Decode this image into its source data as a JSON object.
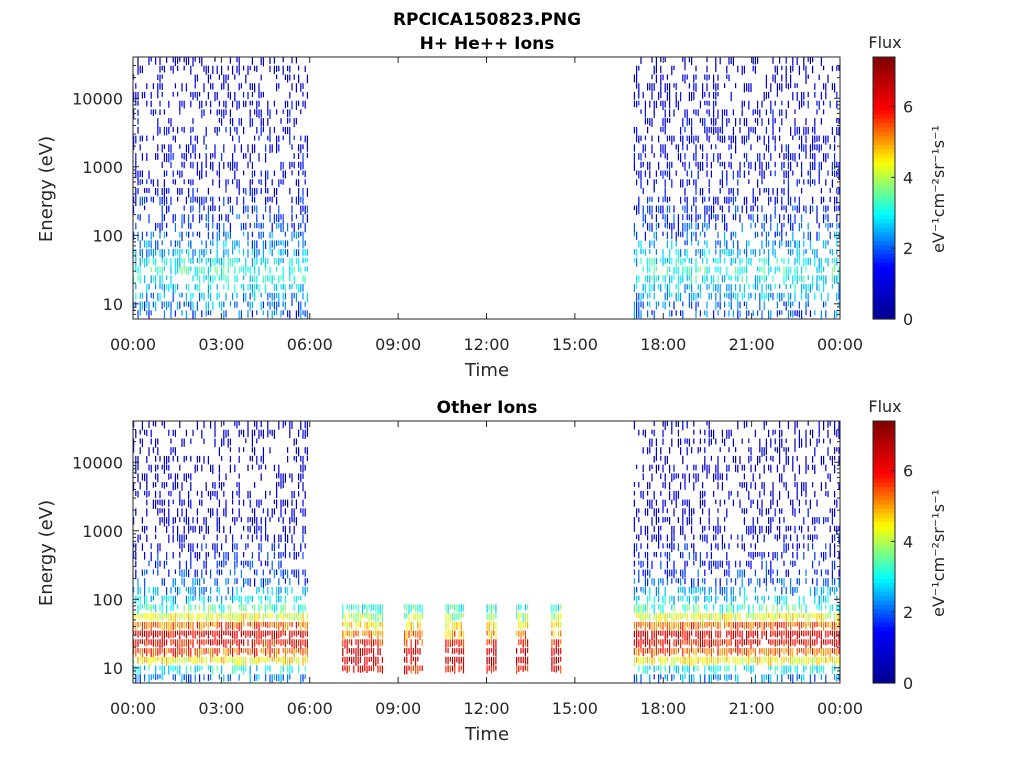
{
  "figure": {
    "title": "RPCICA150823.PNG"
  },
  "colormap": {
    "name": "jet",
    "stops": [
      "#00008f",
      "#0000ff",
      "#00ffff",
      "#ffff00",
      "#ff0000",
      "#800000"
    ]
  },
  "chart_data": [
    {
      "type": "heatmap",
      "title": "H+ He++ Ions",
      "xlabel": "Time",
      "ylabel": "Energy (eV)",
      "y_scale": "log",
      "ylim": [
        6,
        40000
      ],
      "xlim_hours": [
        0,
        24
      ],
      "x_tick_labels": [
        "00:00",
        "03:00",
        "06:00",
        "09:00",
        "12:00",
        "15:00",
        "18:00",
        "21:00",
        "00:00"
      ],
      "y_tick_labels": [
        "10",
        "100",
        "1000",
        "10000"
      ],
      "grid": false,
      "colorbar": {
        "title": "Flux",
        "label": "eV⁻¹cm⁻²sr⁻¹s⁻¹",
        "range": [
          0,
          7.4
        ],
        "tick_labels": [
          "0",
          "2",
          "4",
          "6"
        ]
      },
      "data_intervals_hours": [
        [
          0,
          5.9
        ],
        [
          17.0,
          23.95
        ]
      ],
      "energy_flux_profile": [
        {
          "energy_ev": 8,
          "flux": 2.0
        },
        {
          "energy_ev": 15,
          "flux": 2.6
        },
        {
          "energy_ev": 30,
          "flux": 3.2
        },
        {
          "energy_ev": 60,
          "flux": 2.4
        },
        {
          "energy_ev": 150,
          "flux": 1.8
        },
        {
          "energy_ev": 500,
          "flux": 1.3
        },
        {
          "energy_ev": 2000,
          "flux": 1.2
        },
        {
          "energy_ev": 10000,
          "flux": 1.1
        },
        {
          "energy_ev": 35000,
          "flux": 0.6
        }
      ]
    },
    {
      "type": "heatmap",
      "title": "Other Ions",
      "xlabel": "Time",
      "ylabel": "Energy (eV)",
      "y_scale": "log",
      "ylim": [
        6,
        40000
      ],
      "xlim_hours": [
        0,
        24
      ],
      "x_tick_labels": [
        "00:00",
        "03:00",
        "06:00",
        "09:00",
        "12:00",
        "15:00",
        "18:00",
        "21:00",
        "00:00"
      ],
      "y_tick_labels": [
        "10",
        "100",
        "1000",
        "10000"
      ],
      "grid": false,
      "colorbar": {
        "title": "Flux",
        "label": "eV⁻¹cm⁻²sr⁻¹s⁻¹",
        "range": [
          0,
          7.4
        ],
        "tick_labels": [
          "0",
          "2",
          "4",
          "6"
        ]
      },
      "data_intervals_hours": [
        [
          0,
          5.9
        ],
        [
          17.0,
          23.95
        ]
      ],
      "energy_flux_profile": [
        {
          "energy_ev": 8,
          "flux": 2.2
        },
        {
          "energy_ev": 14,
          "flux": 5.0
        },
        {
          "energy_ev": 20,
          "flux": 5.9
        },
        {
          "energy_ev": 30,
          "flux": 6.3
        },
        {
          "energy_ev": 45,
          "flux": 5.0
        },
        {
          "energy_ev": 80,
          "flux": 3.0
        },
        {
          "energy_ev": 200,
          "flux": 1.8
        },
        {
          "energy_ev": 1000,
          "flux": 1.1
        },
        {
          "energy_ev": 10000,
          "flux": 0.8
        }
      ],
      "bursts_hours": [
        [
          7.1,
          8.5
        ],
        [
          9.2,
          9.8
        ],
        [
          10.6,
          11.2
        ],
        [
          12.0,
          12.3
        ],
        [
          13.0,
          13.4
        ],
        [
          14.2,
          14.5
        ]
      ],
      "burst_energy_range_ev": [
        8,
        80
      ],
      "burst_peak_flux": 6.8
    }
  ]
}
